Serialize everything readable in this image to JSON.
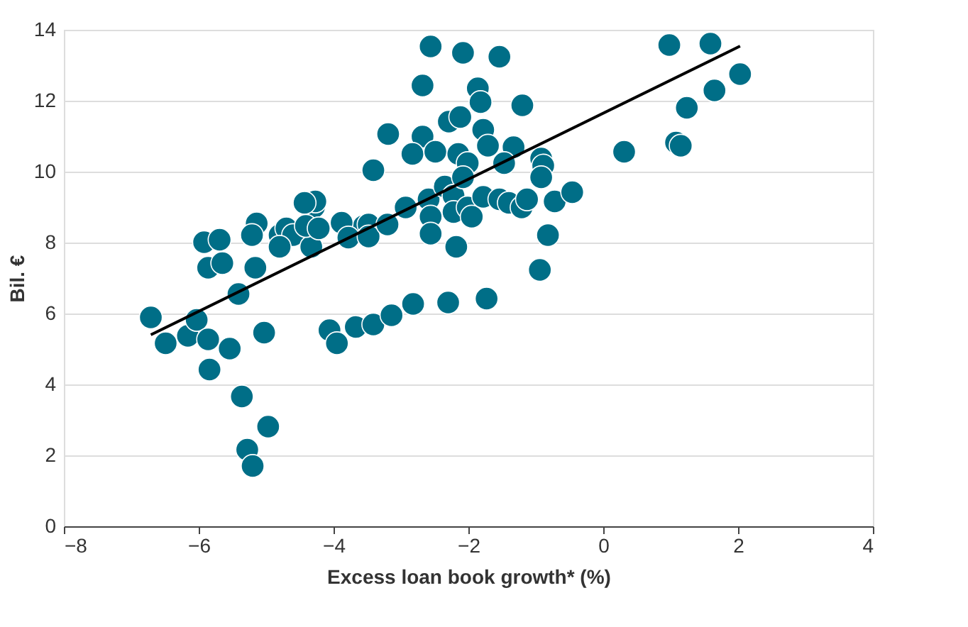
{
  "chart_data": {
    "type": "scatter",
    "xlabel": "Excess loan book growth* (%)",
    "ylabel": "Bil. €",
    "xlim": [
      -8,
      4
    ],
    "xticks": [
      -8,
      -6,
      -4,
      -2,
      0,
      2,
      4
    ],
    "ylim": [
      0,
      14
    ],
    "yticks": [
      0,
      2,
      4,
      6,
      8,
      10,
      12,
      14
    ],
    "grid": "y",
    "legend": false,
    "series": [
      {
        "color": "#006e87",
        "marker": "circle",
        "x": [
          -6.71,
          -6.49,
          -6.16,
          -6.03,
          -5.86,
          -5.84,
          -5.54,
          -5.92,
          -5.69,
          -5.86,
          -5.65,
          -5.41,
          -5.03,
          -5.36,
          -4.97,
          -5.28,
          -5.2,
          -5.16,
          -5.14,
          -5.21,
          -4.8,
          -4.7,
          -4.6,
          -4.33,
          -4.8,
          -4.29,
          -4.06,
          -3.67,
          -3.55,
          -2.56,
          -2.08,
          -1.54,
          -2.68,
          -1.86,
          -1.82,
          -1.2,
          -3.19,
          -2.68,
          -2.29,
          -2.12,
          -1.78,
          -2.83,
          -2.49,
          -2.15,
          -2.01,
          -1.71,
          -1.33,
          -1.47,
          -0.92,
          -0.89,
          -0.92,
          -3.41,
          -4.27,
          -4.43,
          -4.41,
          -4.22,
          -3.88,
          -3.78,
          -3.48,
          -3.48,
          -3.2,
          -2.93,
          -2.59,
          -2.56,
          -2.56,
          -2.35,
          -2.22,
          -2.22,
          -2.18,
          -2.01,
          -1.95,
          -2.08,
          -1.78,
          -1.54,
          -1.4,
          -1.21,
          -1.13,
          -0.72,
          -0.46,
          -0.82,
          -0.94,
          -3.95,
          -3.41,
          -3.14,
          -2.82,
          -2.3,
          -1.73,
          0.98,
          1.59,
          2.03,
          1.65,
          1.24,
          1.08,
          1.15,
          0.31
        ],
        "values": [
          5.89,
          5.16,
          5.37,
          5.82,
          5.27,
          4.42,
          5.01,
          8.01,
          8.08,
          7.29,
          7.42,
          6.55,
          5.46,
          3.66,
          2.81,
          2.16,
          1.7,
          7.29,
          8.54,
          8.21,
          8.21,
          8.4,
          8.21,
          7.88,
          7.88,
          9.0,
          5.53,
          5.62,
          8.47,
          13.53,
          13.35,
          13.24,
          12.43,
          12.35,
          11.96,
          11.87,
          11.06,
          10.99,
          11.41,
          11.54,
          11.18,
          10.5,
          10.56,
          10.5,
          10.24,
          10.73,
          10.69,
          10.24,
          10.37,
          10.17,
          9.84,
          10.04,
          9.16,
          9.12,
          8.47,
          8.4,
          8.56,
          8.14,
          8.51,
          8.17,
          8.51,
          8.99,
          9.22,
          8.73,
          8.25,
          9.58,
          9.32,
          8.86,
          7.88,
          8.99,
          8.73,
          9.84,
          9.29,
          9.22,
          9.12,
          8.99,
          9.22,
          9.16,
          9.42,
          8.21,
          7.23,
          5.16,
          5.69,
          5.95,
          6.27,
          6.31,
          6.42,
          13.57,
          13.61,
          12.75,
          12.29,
          11.8,
          10.82,
          10.73,
          10.56
        ]
      },
      {
        "type": "line",
        "color": "#000000",
        "line_style": "solid",
        "x": [
          -6.71,
          2.03
        ],
        "values": [
          5.4,
          13.54
        ]
      }
    ]
  }
}
